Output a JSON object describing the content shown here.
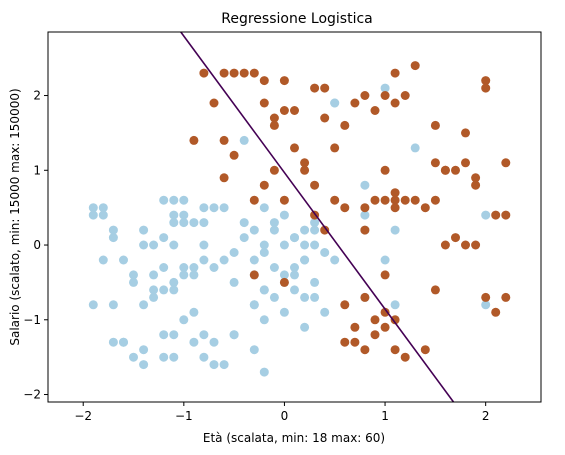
{
  "chart_data": {
    "type": "scatter",
    "title": "Regressione Logistica",
    "xlabel": "Età (scalata, min: 18 max: 60)",
    "ylabel": "Salario (scalato, min: 15000 max: 150000)",
    "xlim": [
      -2.35,
      2.55
    ],
    "ylim": [
      -2.1,
      2.85
    ],
    "xticks": [
      -2,
      -1,
      0,
      1,
      2
    ],
    "yticks": [
      -2,
      -1,
      0,
      1,
      2
    ],
    "grid": false,
    "colors": {
      "class_0": "#a6cee3",
      "class_1": "#b15928",
      "boundary": "#440154"
    },
    "decision_boundary": {
      "x": [
        -1.03,
        1.68
      ],
      "y": [
        2.85,
        -2.1
      ]
    },
    "series": [
      {
        "color": "#a6cee3",
        "x": [
          -1.9,
          -1.9,
          -1.9,
          -1.8,
          -1.8,
          -1.7,
          -1.7,
          -1.7,
          -1.6,
          -1.6,
          -1.5,
          -1.4,
          -1.4,
          -1.4,
          -1.3,
          -1.3,
          -1.2,
          -1.2,
          -1.2,
          -1.2,
          -1.1,
          -1.1,
          -1.1,
          -1.1,
          -1.0,
          -1.0,
          -1.0,
          -0.9,
          -0.9,
          -0.8,
          -0.8,
          -0.7,
          -0.7,
          -0.6,
          -0.5,
          -0.4,
          -0.4,
          -0.3,
          -0.3,
          -0.2,
          -0.2,
          -0.2,
          -0.1,
          -0.1,
          0.0,
          0.0,
          0.1,
          0.1,
          0.2,
          0.2,
          0.3,
          0.3,
          0.5,
          0.8,
          0.8,
          1.1,
          1.3,
          2.0,
          2.0,
          1.0,
          0.5,
          -1.4,
          -1.5,
          -1.6,
          -1.4,
          -1.0,
          -0.8,
          -0.6,
          -0.6,
          -0.3,
          -0.2,
          -0.1,
          0.0,
          0.1,
          0.2,
          0.3,
          -1.2,
          -1.1,
          -1.1,
          -1.0,
          -0.9,
          -0.8,
          -0.7,
          -0.5,
          -0.4,
          -0.3,
          -0.2,
          -0.1,
          0.0,
          0.1,
          0.2,
          0.3,
          0.4,
          0.8,
          1.0,
          -1.7,
          -1.3,
          -1.1,
          -1.0,
          -0.9,
          -0.8,
          -0.5,
          -0.3,
          -0.2,
          0.0,
          0.1,
          0.2,
          0.3,
          0.5,
          0.8,
          1.1,
          -1.8,
          -1.5,
          -1.3,
          -1.2,
          -1.1,
          -0.9,
          -0.8,
          -0.7,
          -0.5,
          -0.3,
          -0.2,
          0.2,
          0.4
        ],
        "y": [
          0.5,
          0.4,
          -0.8,
          0.5,
          0.4,
          0.2,
          0.1,
          -0.8,
          -1.3,
          -1.3,
          -1.5,
          -1.6,
          -1.4,
          -0.8,
          -0.7,
          -0.4,
          -1.2,
          -0.6,
          0.1,
          0.6,
          0.6,
          0.4,
          0.3,
          -0.6,
          0.6,
          0.4,
          0.3,
          -0.9,
          0.3,
          -1.5,
          0.5,
          -1.6,
          0.5,
          -1.6,
          -0.5,
          1.4,
          0.3,
          -1.4,
          -0.8,
          0.5,
          -1.0,
          -1.7,
          0.2,
          -0.7,
          -0.4,
          0.4,
          0.1,
          -0.3,
          0.0,
          -0.2,
          -0.5,
          0.2,
          1.9,
          0.8,
          0.4,
          0.2,
          1.3,
          0.4,
          -0.8,
          2.1,
          1.9,
          0.0,
          -0.4,
          -0.2,
          0.2,
          -0.3,
          0.3,
          -0.2,
          0.5,
          0.2,
          -0.1,
          0.3,
          0.0,
          0.1,
          0.2,
          0.0,
          -0.3,
          -0.5,
          0.0,
          -0.4,
          -0.3,
          0.0,
          -0.3,
          -0.1,
          0.1,
          -0.2,
          0.0,
          -0.3,
          -0.5,
          -0.4,
          -0.2,
          0.3,
          -0.1,
          0.2,
          -0.2,
          -1.3,
          0.0,
          -1.2,
          -1.0,
          -0.4,
          -0.2,
          -1.2,
          -0.4,
          -0.6,
          -0.9,
          -0.6,
          -0.7,
          -0.7,
          -0.2,
          -0.7,
          -0.8,
          -0.2,
          -0.5,
          -0.6,
          -1.5,
          -1.5,
          -1.3,
          -1.2,
          -1.3,
          -1.2,
          -0.8,
          -0.6,
          -1.1,
          -0.9
        ],
        "label": ""
      },
      {
        "color": "#b15928",
        "x": [
          -0.8,
          -0.7,
          -0.6,
          -0.5,
          -0.4,
          -0.3,
          -0.2,
          -0.2,
          -0.1,
          -0.1,
          0.0,
          0.0,
          0.1,
          0.1,
          0.2,
          0.3,
          0.4,
          0.4,
          0.5,
          0.6,
          0.7,
          0.8,
          0.9,
          1.0,
          1.1,
          1.1,
          1.2,
          1.3,
          1.5,
          1.6,
          1.7,
          1.8,
          1.9,
          1.9,
          2.0,
          2.2,
          -0.9,
          -0.6,
          -0.5,
          -0.2,
          -0.1,
          0.2,
          0.3,
          0.5,
          0.8,
          1.0,
          1.1,
          1.5,
          1.6,
          1.8,
          2.0,
          2.1,
          2.2,
          -0.6,
          -0.3,
          0.0,
          0.3,
          0.4,
          0.6,
          0.8,
          0.9,
          1.0,
          1.1,
          1.1,
          1.2,
          1.3,
          1.4,
          1.5,
          1.6,
          1.7,
          1.8,
          1.9,
          2.0,
          2.1,
          2.2,
          0.6,
          0.7,
          0.9,
          0.9,
          1.0,
          1.1,
          0.8,
          0.6,
          0.7,
          1.1,
          1.2,
          1.4,
          1.0,
          -0.3,
          0.0,
          0.8,
          1.0,
          1.5
        ],
        "y": [
          2.3,
          1.9,
          2.3,
          2.3,
          2.3,
          2.3,
          2.2,
          1.9,
          1.7,
          1.6,
          2.2,
          1.8,
          1.8,
          1.3,
          1.1,
          2.1,
          2.1,
          1.7,
          1.3,
          1.6,
          1.9,
          2.0,
          1.8,
          2.0,
          2.3,
          1.9,
          2.0,
          2.4,
          1.6,
          1.0,
          1.0,
          1.5,
          0.9,
          0.8,
          2.2,
          1.1,
          1.4,
          1.4,
          1.2,
          0.8,
          1.0,
          1.0,
          0.8,
          0.6,
          0.5,
          1.0,
          0.6,
          1.1,
          1.0,
          1.1,
          2.1,
          0.4,
          0.4,
          0.9,
          0.6,
          0.6,
          0.4,
          0.2,
          0.5,
          0.2,
          0.6,
          0.6,
          0.5,
          0.7,
          0.6,
          0.6,
          0.5,
          0.6,
          0.0,
          0.1,
          0.0,
          0.0,
          -0.7,
          -0.9,
          -0.7,
          -0.8,
          -1.3,
          -1.2,
          -1.0,
          -1.1,
          -1.0,
          -1.4,
          -1.3,
          -1.1,
          -1.4,
          -1.5,
          -1.4,
          -0.9,
          -0.4,
          -0.5,
          -0.7,
          -0.4,
          -0.6
        ],
        "label": ""
      }
    ]
  }
}
